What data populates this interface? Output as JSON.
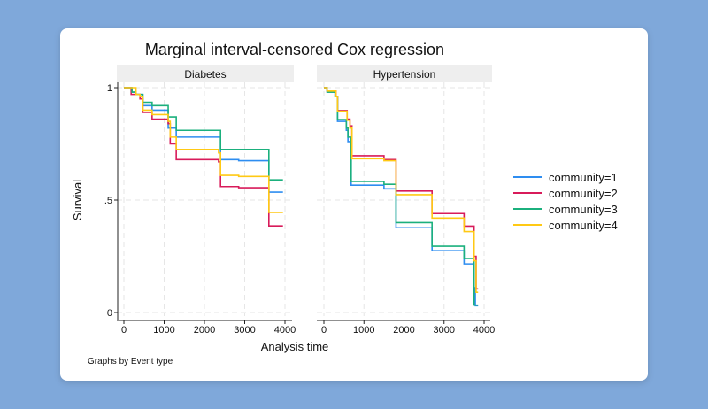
{
  "chart_data": {
    "type": "line",
    "step": true,
    "title": "Marginal interval-censored Cox regression",
    "xlabel": "Analysis time",
    "ylabel": "Survival",
    "note": "Graphs by Event type",
    "xlim": [
      0,
      4000
    ],
    "ylim": [
      0,
      1
    ],
    "xticks": [
      "0",
      "1000",
      "2000",
      "3000",
      "4000"
    ],
    "yticks": [
      {
        "value": 0,
        "label": "0"
      },
      {
        "value": 0.5,
        "label": ".5"
      },
      {
        "value": 1,
        "label": "1"
      }
    ],
    "grid": true,
    "legend_position": "right",
    "series_styles": [
      {
        "name": "community=1",
        "color": "#2e8df0"
      },
      {
        "name": "community=2",
        "color": "#d81b5a"
      },
      {
        "name": "community=3",
        "color": "#1bb07d"
      },
      {
        "name": "community=4",
        "color": "#ffc914"
      }
    ],
    "panels": [
      {
        "label": "Diabetes",
        "series": [
          {
            "name": "community=1",
            "x": [
              0,
              200,
              300,
              470,
              700,
              1100,
              1300,
              2400,
              2850,
              3600,
              3950
            ],
            "y": [
              1,
              0.98,
              0.97,
              0.92,
              0.9,
              0.82,
              0.78,
              0.68,
              0.675,
              0.535,
              0.535
            ]
          },
          {
            "name": "community=2",
            "x": [
              0,
              180,
              400,
              470,
              700,
              1100,
              1150,
              1300,
              2350,
              2400,
              2850,
              3600,
              3950
            ],
            "y": [
              1,
              0.97,
              0.95,
              0.89,
              0.86,
              0.84,
              0.75,
              0.68,
              0.67,
              0.56,
              0.555,
              0.385,
              0.385
            ]
          },
          {
            "name": "community=3",
            "x": [
              0,
              200,
              300,
              470,
              700,
              1100,
              1300,
              2400,
              3600,
              3950
            ],
            "y": [
              1,
              0.98,
              0.97,
              0.935,
              0.92,
              0.87,
              0.81,
              0.725,
              0.59,
              0.59
            ]
          },
          {
            "name": "community=4",
            "x": [
              0,
              200,
              300,
              400,
              470,
              700,
              1100,
              1150,
              1300,
              2350,
              2400,
              2850,
              3600,
              3950
            ],
            "y": [
              1,
              1,
              0.97,
              0.96,
              0.9,
              0.88,
              0.85,
              0.78,
              0.725,
              0.71,
              0.61,
              0.605,
              0.445,
              0.445
            ]
          }
        ]
      },
      {
        "label": "Hypertension",
        "series": [
          {
            "name": "community=1",
            "x": [
              0,
              80,
              280,
              340,
              560,
              600,
              680,
              1500,
              1800,
              2700,
              3500,
              3750,
              3780,
              3850
            ],
            "y": [
              1,
              0.98,
              0.96,
              0.85,
              0.81,
              0.76,
              0.566,
              0.55,
              0.377,
              0.275,
              0.216,
              0.11,
              0.03,
              0.03
            ]
          },
          {
            "name": "community=2",
            "x": [
              0,
              80,
              300,
              340,
              580,
              650,
              700,
              1500,
              1800,
              2700,
              3500,
              3750,
              3800,
              3850
            ],
            "y": [
              1,
              0.985,
              0.96,
              0.898,
              0.86,
              0.83,
              0.697,
              0.68,
              0.54,
              0.44,
              0.384,
              0.25,
              0.105,
              0.105
            ]
          },
          {
            "name": "community=3",
            "x": [
              0,
              80,
              280,
              340,
              560,
              600,
              680,
              1500,
              1800,
              2700,
              3500,
              3750,
              3850
            ],
            "y": [
              1,
              0.98,
              0.96,
              0.858,
              0.82,
              0.78,
              0.583,
              0.57,
              0.4,
              0.295,
              0.24,
              0.033,
              0.033
            ]
          },
          {
            "name": "community=4",
            "x": [
              0,
              80,
              300,
              340,
              580,
              650,
              700,
              1500,
              1800,
              2700,
              3500,
              3750,
              3800,
              3850
            ],
            "y": [
              1,
              0.985,
              0.96,
              0.895,
              0.855,
              0.82,
              0.684,
              0.675,
              0.524,
              0.42,
              0.36,
              0.23,
              0.09,
              0.09
            ]
          }
        ]
      }
    ]
  }
}
